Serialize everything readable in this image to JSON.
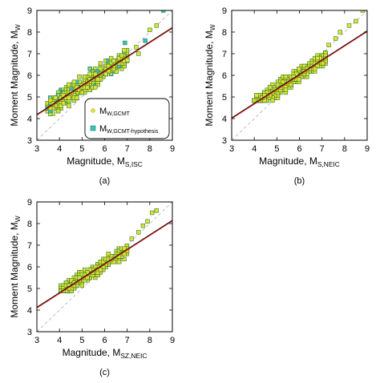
{
  "colors": {
    "gcmt_fill": "#d8e63a",
    "gcmt_edge": "#b8b020",
    "hypo_fill": "#2ec4d6",
    "hypo_edge": "#1a8a9a",
    "square_edge": "#3a7a2a",
    "regression": "#e02020",
    "fit_black": "#000000",
    "one_to_one": "#b0b0b0"
  },
  "chart_data": [
    {
      "type": "scatter",
      "panel_label": "(a)",
      "xlabel_main": "Magnitude, M",
      "xlabel_sub": "S,ISC",
      "ylabel_main": "Moment Magnitude, M",
      "ylabel_sub": "W",
      "xlim": [
        3,
        9
      ],
      "ylim": [
        3,
        9
      ],
      "xticks": [
        "3",
        "4",
        "5",
        "6",
        "7",
        "8",
        "9"
      ],
      "yticks": [
        "3",
        "4",
        "5",
        "6",
        "7",
        "8",
        "9"
      ],
      "fit_line": {
        "slope": 0.67,
        "intercept": 2.16
      },
      "one_to_one": true,
      "cloud": {
        "x_range": [
          3.5,
          7.0
        ],
        "y_min": 4.2,
        "y_max": 7.2,
        "spread": 0.3
      },
      "series": [
        {
          "name": "M",
          "name_sub": "W,GCMT",
          "marker": "circle",
          "role": "gcmt"
        },
        {
          "name": "M",
          "name_sub": "W,GCMT-hypothesis",
          "marker": "square",
          "role": "hypothesis"
        }
      ],
      "outliers": [
        [
          8.6,
          9.0
        ],
        [
          8.3,
          8.3
        ],
        [
          8.0,
          8.1
        ],
        [
          7.8,
          7.6
        ],
        [
          7.4,
          7.3
        ],
        [
          7.5,
          7.0
        ],
        [
          6.9,
          7.5
        ],
        [
          7.0,
          6.7
        ]
      ],
      "legend_placement": "bottom-right"
    },
    {
      "type": "scatter",
      "panel_label": "(b)",
      "xlabel_main": "Magnitude, M",
      "xlabel_sub": "S,NEIC",
      "ylabel_main": "Moment Magnitude, M",
      "ylabel_sub": "W",
      "xlim": [
        3,
        9
      ],
      "ylim": [
        3,
        9
      ],
      "xticks": [
        "3",
        "4",
        "5",
        "6",
        "7",
        "8",
        "9"
      ],
      "yticks": [
        "3",
        "4",
        "5",
        "6",
        "7",
        "8",
        "9"
      ],
      "fit_line": {
        "slope": 0.67,
        "intercept": 2.0
      },
      "one_to_one": true,
      "cloud": {
        "x_range": [
          4.0,
          7.2
        ],
        "y_min": 4.8,
        "y_max": 7.4,
        "spread": 0.22
      },
      "outliers": [
        [
          8.8,
          9.0
        ],
        [
          8.5,
          8.5
        ],
        [
          8.2,
          8.3
        ],
        [
          7.8,
          8.0
        ],
        [
          7.6,
          7.7
        ],
        [
          7.3,
          7.4
        ]
      ]
    },
    {
      "type": "scatter",
      "panel_label": "(c)",
      "xlabel_main": "Magnitude, M",
      "xlabel_sub": "SZ,NEIC",
      "ylabel_main": "Moment Magnitude, M",
      "ylabel_sub": "W",
      "xlim": [
        3,
        9
      ],
      "ylim": [
        3,
        9
      ],
      "xticks": [
        "3",
        "4",
        "5",
        "6",
        "7",
        "8",
        "9"
      ],
      "yticks": [
        "3",
        "4",
        "5",
        "6",
        "7",
        "8",
        "9"
      ],
      "fit_line": {
        "slope": 0.67,
        "intercept": 2.1
      },
      "one_to_one": true,
      "cloud": {
        "x_range": [
          4.1,
          7.0
        ],
        "y_min": 4.9,
        "y_max": 7.1,
        "spread": 0.2
      },
      "outliers": [
        [
          8.1,
          8.5
        ],
        [
          7.9,
          8.1
        ],
        [
          7.7,
          7.9
        ],
        [
          7.5,
          7.6
        ],
        [
          8.3,
          8.6
        ],
        [
          7.2,
          7.3
        ]
      ]
    }
  ]
}
